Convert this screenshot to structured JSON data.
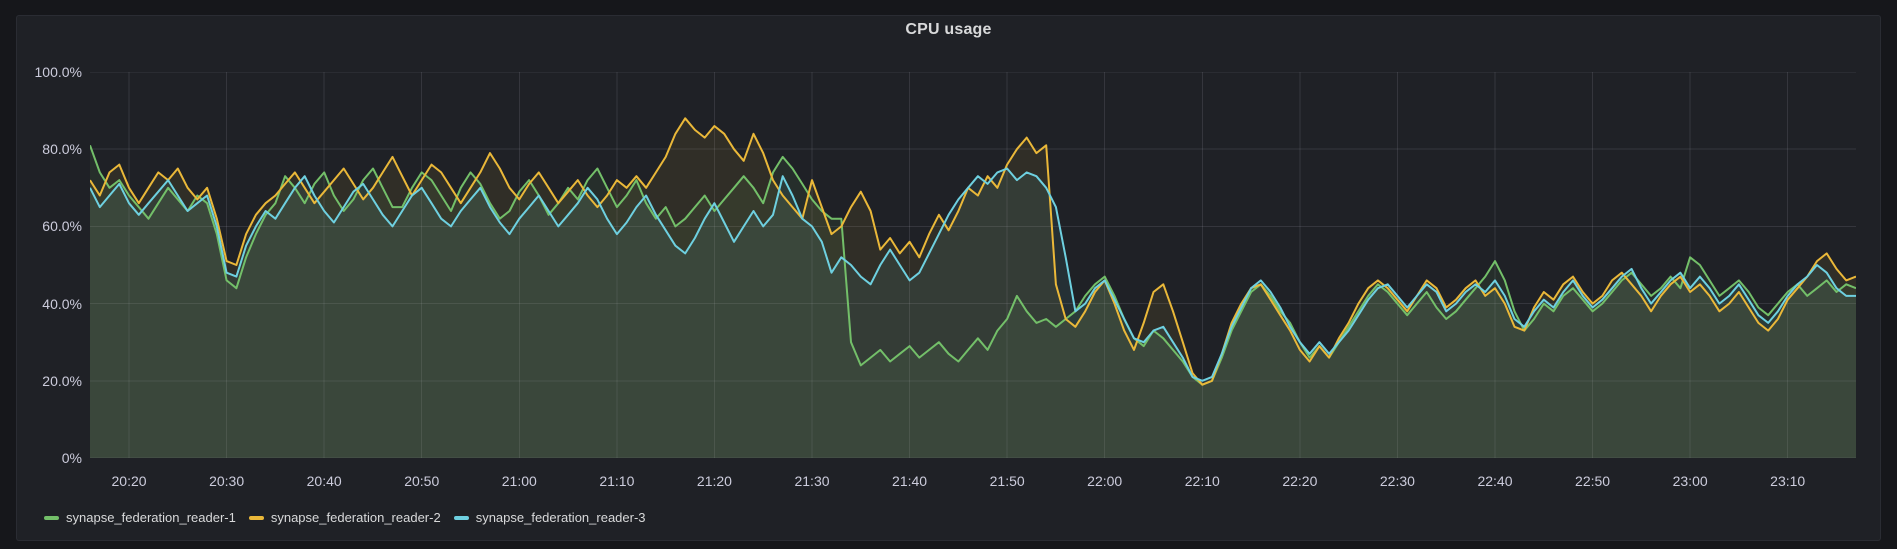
{
  "panel": {
    "title": "CPU usage"
  },
  "colors": {
    "page_bg": "#16171B",
    "panel_bg": "#1F2126",
    "grid": "rgba(204,204,220,0.13)",
    "axis_text": "#CCCCDC",
    "title_text": "#D8D9DA",
    "legend_text": "#D8D9DA"
  },
  "chart_data": {
    "type": "area",
    "title": "CPU usage",
    "unit": "percent",
    "x_start_label": "20:16",
    "x_step_minutes": 1,
    "x_total_minutes": 181,
    "ylim": [
      0,
      100
    ],
    "grid": true,
    "legend_position": "bottom",
    "fill_opacity": 0.085,
    "line_width": 2,
    "y_ticks": {
      "values": [
        100,
        80,
        60,
        40,
        20,
        0
      ],
      "labels": [
        "100.0%",
        "80.0%",
        "60.0%",
        "40.0%",
        "20.0%",
        "0%"
      ]
    },
    "x_ticks": {
      "minutes": [
        4,
        14,
        24,
        34,
        44,
        54,
        64,
        74,
        84,
        94,
        104,
        114,
        124,
        134,
        144,
        154,
        164,
        174
      ],
      "labels": [
        "20:20",
        "20:30",
        "20:40",
        "20:50",
        "21:00",
        "21:10",
        "21:20",
        "21:30",
        "21:40",
        "21:50",
        "22:00",
        "22:10",
        "22:20",
        "22:30",
        "22:40",
        "22:50",
        "23:00",
        "23:10"
      ]
    },
    "series": [
      {
        "name": "synapse_federation_reader-1",
        "color": "#73BF69",
        "values": [
          81,
          74,
          70,
          72,
          68,
          65,
          62,
          66,
          70,
          67,
          64,
          68,
          66,
          58,
          46,
          44,
          52,
          58,
          63,
          66,
          73,
          70,
          66,
          71,
          74,
          68,
          64,
          67,
          72,
          75,
          70,
          65,
          65,
          70,
          74,
          72,
          68,
          64,
          70,
          74,
          71,
          66,
          62,
          64,
          69,
          72,
          68,
          63,
          66,
          70,
          67,
          72,
          75,
          70,
          65,
          68,
          72,
          66,
          62,
          65,
          60,
          62,
          65,
          68,
          64,
          67,
          70,
          73,
          70,
          66,
          74,
          78,
          75,
          71,
          67,
          64,
          62,
          62,
          30,
          24,
          26,
          28,
          25,
          27,
          29,
          26,
          28,
          30,
          27,
          25,
          28,
          31,
          28,
          33,
          36,
          42,
          38,
          35,
          36,
          34,
          36,
          38,
          42,
          45,
          47,
          42,
          36,
          31,
          29,
          33,
          31,
          28,
          25,
          21,
          19,
          20,
          26,
          33,
          38,
          43,
          45,
          42,
          38,
          35,
          30,
          26,
          29,
          26,
          30,
          34,
          38,
          42,
          45,
          43,
          40,
          37,
          40,
          43,
          39,
          36,
          38,
          41,
          44,
          47,
          51,
          46,
          38,
          33,
          36,
          40,
          38,
          42,
          44,
          41,
          38,
          40,
          43,
          46,
          48,
          45,
          42,
          44,
          47,
          44,
          52,
          50,
          46,
          42,
          44,
          46,
          43,
          39,
          37,
          40,
          43,
          45,
          42,
          44,
          46,
          43,
          45,
          44
        ]
      },
      {
        "name": "synapse_federation_reader-2",
        "color": "#EAB839",
        "values": [
          72,
          68,
          74,
          76,
          70,
          66,
          70,
          74,
          72,
          75,
          70,
          67,
          70,
          62,
          51,
          50,
          58,
          63,
          66,
          68,
          71,
          74,
          70,
          66,
          69,
          72,
          75,
          71,
          67,
          70,
          74,
          78,
          73,
          68,
          72,
          76,
          74,
          70,
          66,
          70,
          74,
          79,
          75,
          70,
          67,
          71,
          74,
          70,
          66,
          69,
          72,
          68,
          65,
          68,
          72,
          70,
          73,
          70,
          74,
          78,
          84,
          88,
          85,
          83,
          86,
          84,
          80,
          77,
          84,
          79,
          72,
          68,
          65,
          62,
          72,
          65,
          58,
          60,
          65,
          69,
          64,
          54,
          57,
          53,
          56,
          52,
          58,
          63,
          59,
          64,
          70,
          68,
          73,
          70,
          76,
          80,
          83,
          79,
          81,
          45,
          36,
          34,
          38,
          43,
          46,
          40,
          33,
          28,
          35,
          43,
          45,
          38,
          30,
          22,
          19,
          20,
          27,
          35,
          40,
          44,
          45,
          41,
          37,
          33,
          28,
          25,
          29,
          26,
          31,
          35,
          40,
          44,
          46,
          44,
          41,
          38,
          42,
          46,
          44,
          39,
          41,
          44,
          46,
          42,
          44,
          40,
          34,
          33,
          39,
          43,
          41,
          45,
          47,
          43,
          40,
          42,
          46,
          48,
          45,
          42,
          38,
          42,
          45,
          47,
          43,
          45,
          42,
          38,
          40,
          43,
          39,
          35,
          33,
          36,
          41,
          44,
          47,
          51,
          53,
          49,
          46,
          47
        ]
      },
      {
        "name": "synapse_federation_reader-3",
        "color": "#6ED0E0",
        "values": [
          70,
          65,
          68,
          71,
          66,
          63,
          66,
          69,
          72,
          68,
          64,
          66,
          68,
          60,
          48,
          47,
          55,
          60,
          64,
          62,
          66,
          70,
          73,
          68,
          64,
          61,
          65,
          69,
          71,
          67,
          63,
          60,
          64,
          68,
          70,
          66,
          62,
          60,
          64,
          67,
          70,
          65,
          61,
          58,
          62,
          65,
          68,
          64,
          60,
          63,
          66,
          70,
          67,
          62,
          58,
          61,
          65,
          68,
          63,
          59,
          55,
          53,
          57,
          62,
          66,
          61,
          56,
          60,
          64,
          60,
          63,
          73,
          68,
          62,
          60,
          56,
          48,
          52,
          50,
          47,
          45,
          50,
          54,
          50,
          46,
          48,
          53,
          58,
          63,
          67,
          70,
          73,
          71,
          74,
          75,
          72,
          74,
          73,
          70,
          65,
          52,
          38,
          40,
          44,
          46,
          41,
          36,
          31,
          30,
          33,
          34,
          30,
          26,
          21,
          20,
          21,
          27,
          34,
          39,
          44,
          46,
          43,
          39,
          34,
          30,
          27,
          30,
          27,
          30,
          33,
          37,
          41,
          44,
          45,
          42,
          39,
          42,
          45,
          43,
          38,
          40,
          43,
          45,
          43,
          46,
          42,
          36,
          34,
          38,
          41,
          39,
          43,
          46,
          42,
          39,
          41,
          44,
          47,
          49,
          44,
          40,
          43,
          46,
          48,
          44,
          47,
          44,
          40,
          42,
          45,
          41,
          37,
          35,
          38,
          42,
          45,
          47,
          50,
          48,
          44,
          42,
          42
        ]
      }
    ]
  }
}
